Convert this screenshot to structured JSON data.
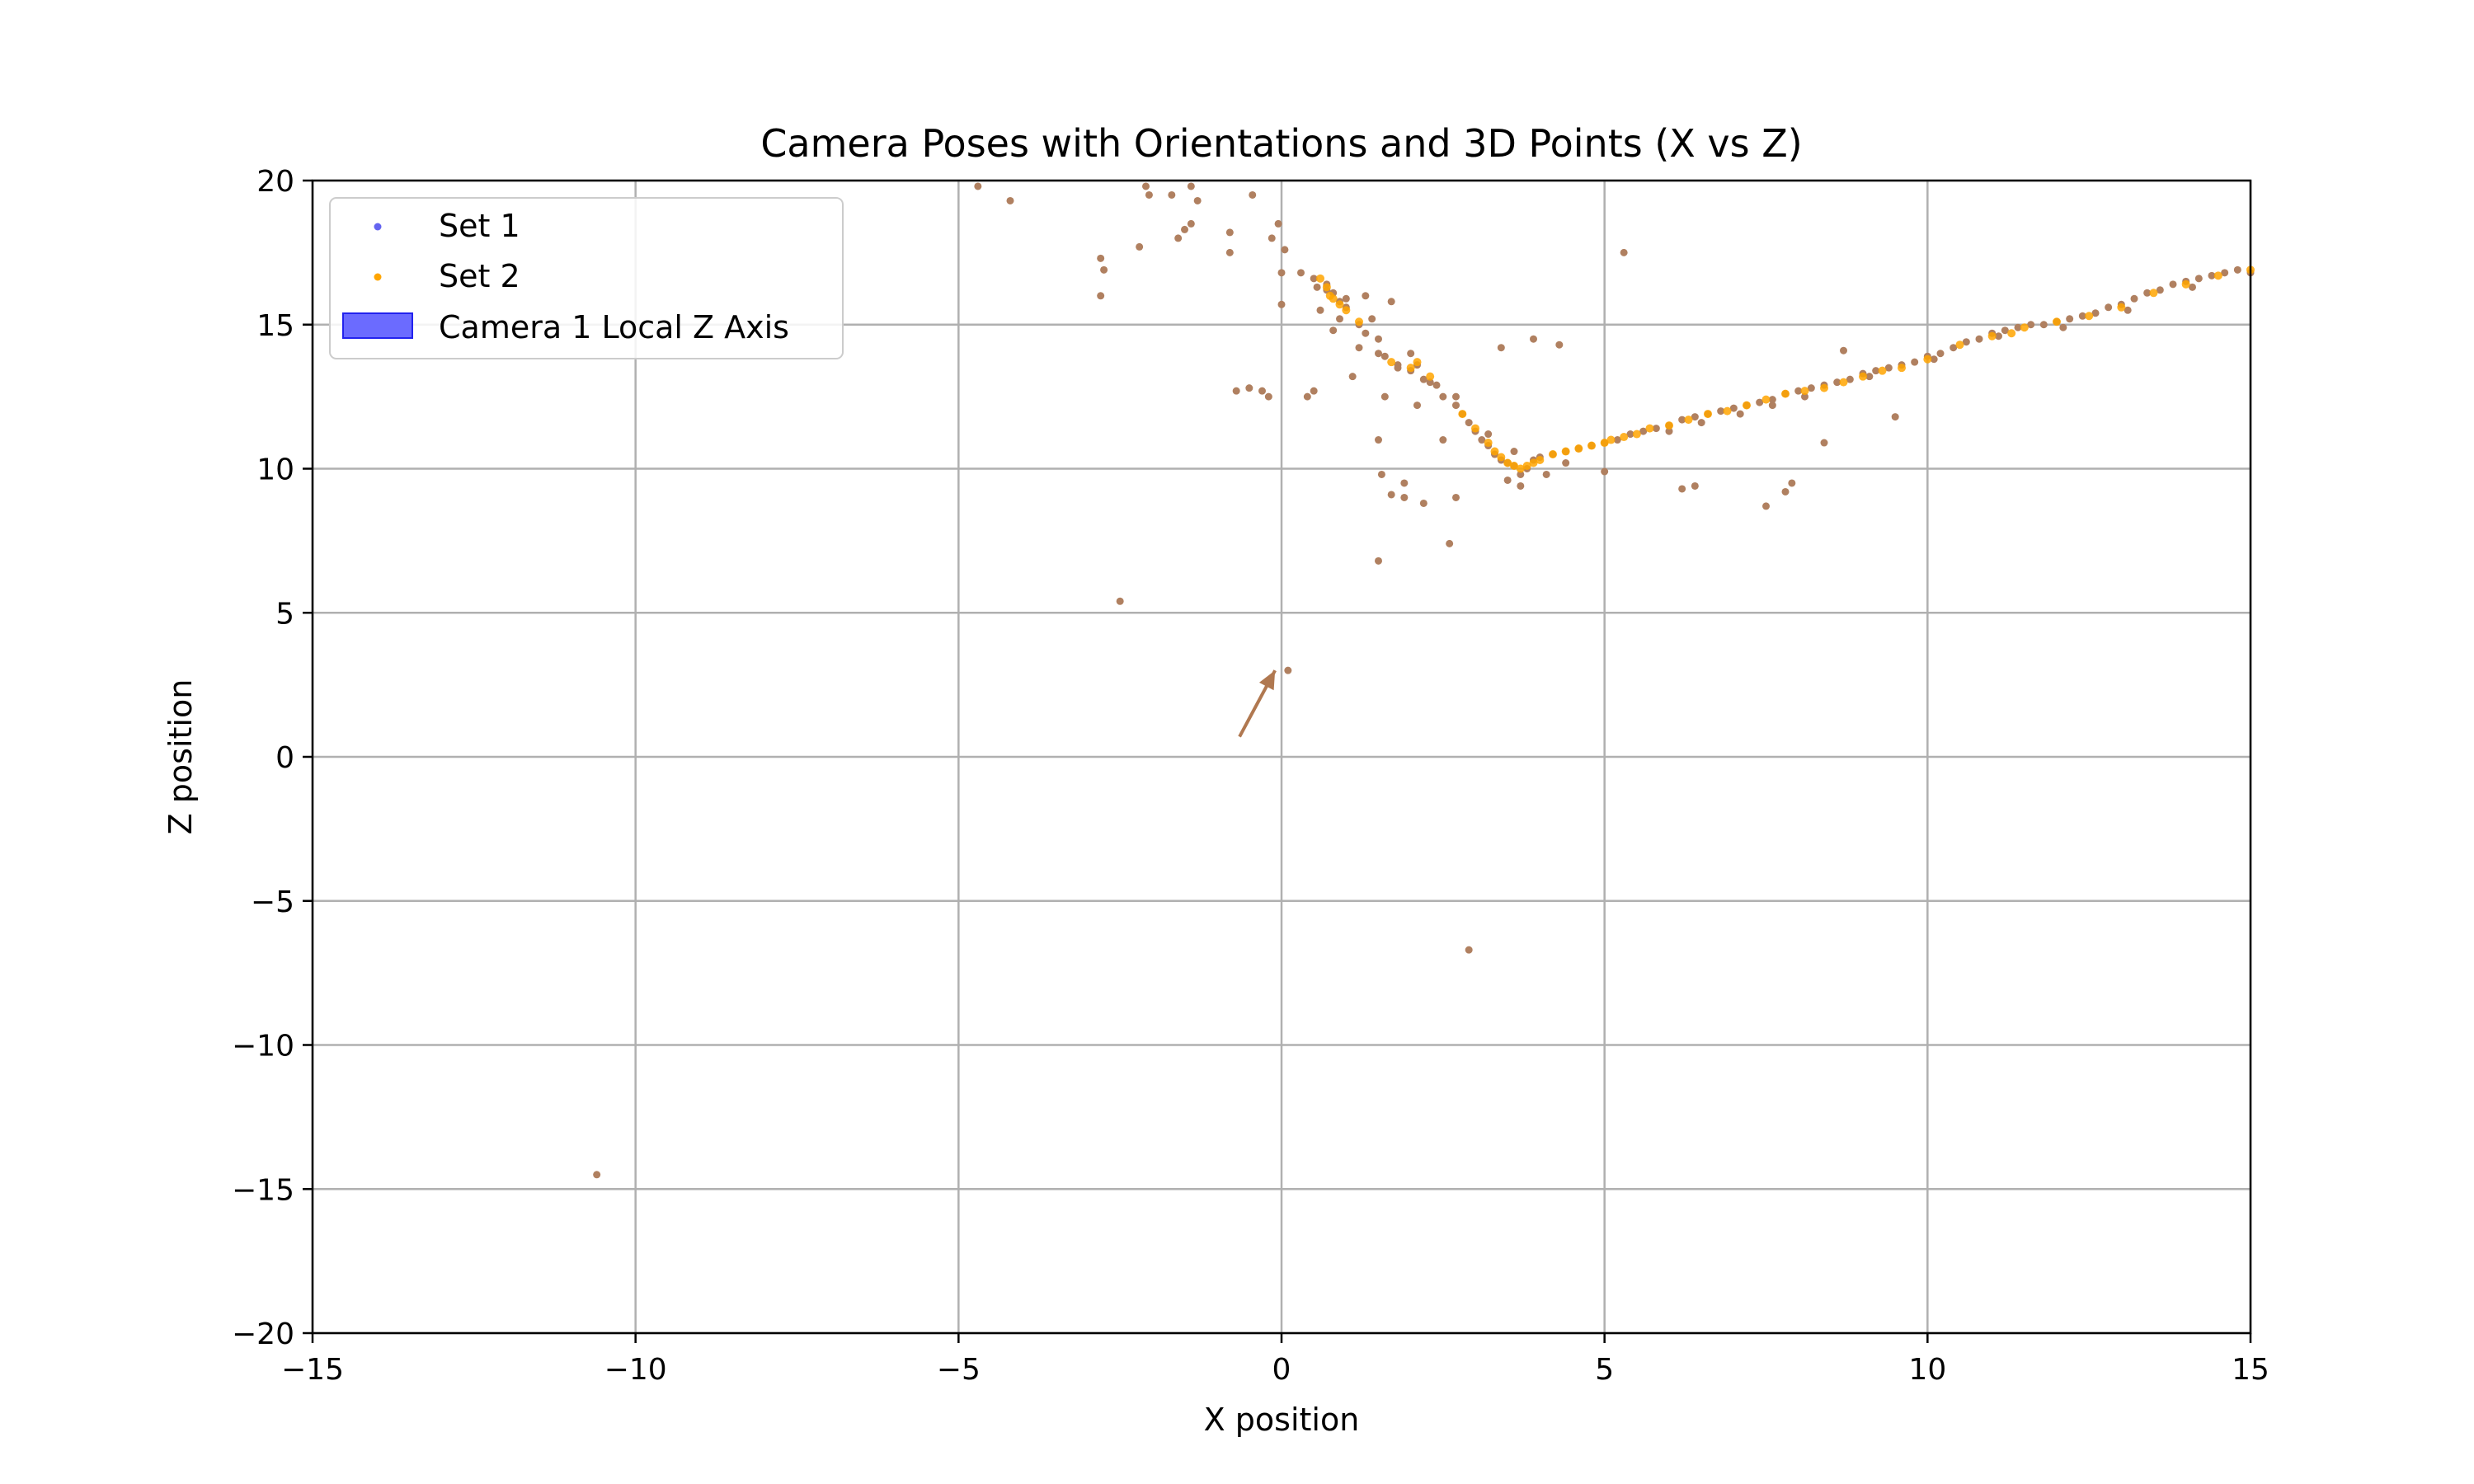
{
  "chart_data": {
    "type": "scatter",
    "title": "Camera Poses with Orientations and 3D Points (X vs Z)",
    "xlabel": "X position",
    "ylabel": "Z position",
    "xlim": [
      -15,
      15
    ],
    "ylim": [
      -20,
      20
    ],
    "grid": true,
    "legend_position": "upper-left",
    "x_ticks": [
      -15,
      -10,
      -5,
      0,
      5,
      10,
      15
    ],
    "y_ticks": [
      -20,
      -15,
      -10,
      -5,
      0,
      5,
      10,
      15,
      20
    ],
    "x_tick_labels": [
      "−15",
      "−10",
      "−5",
      "0",
      "5",
      "10",
      "15"
    ],
    "y_tick_labels": [
      "−20",
      "−15",
      "−10",
      "−5",
      "0",
      "5",
      "10",
      "15",
      "20"
    ],
    "colors": {
      "set1": "#6464f0",
      "set2": "#ffa500",
      "overlap": "#b08060",
      "arrow": "#b07850",
      "legend_patch": "#6b6bff",
      "grid": "#b0b0b0"
    },
    "legend": [
      {
        "label": "Set 1",
        "marker": "dot",
        "color": "#6464f0"
      },
      {
        "label": "Set 2",
        "marker": "dot",
        "color": "#ffa500"
      },
      {
        "label": "Camera 1 Local Z Axis",
        "marker": "patch",
        "color": "#6b6bff"
      }
    ],
    "arrow": {
      "x_start": -0.65,
      "y_start": 0.7,
      "x_end": -0.1,
      "y_end": 3.0
    },
    "series": [
      {
        "name": "Set 1",
        "points": [
          [
            -4.7,
            19.8
          ],
          [
            -4.2,
            19.3
          ],
          [
            -2.8,
            17.3
          ],
          [
            -2.75,
            16.9
          ],
          [
            -2.8,
            16.0
          ],
          [
            -2.5,
            5.4
          ],
          [
            -2.2,
            17.7
          ],
          [
            -2.1,
            19.8
          ],
          [
            -2.05,
            19.5
          ],
          [
            -1.7,
            19.5
          ],
          [
            -1.6,
            18.0
          ],
          [
            -1.5,
            18.3
          ],
          [
            -1.4,
            18.5
          ],
          [
            -1.4,
            19.8
          ],
          [
            -1.3,
            19.3
          ],
          [
            -0.8,
            18.2
          ],
          [
            -0.8,
            17.5
          ],
          [
            -0.7,
            12.7
          ],
          [
            -0.5,
            12.8
          ],
          [
            -0.45,
            19.5
          ],
          [
            -0.3,
            12.7
          ],
          [
            -0.2,
            12.5
          ],
          [
            -0.15,
            18.0
          ],
          [
            -0.05,
            18.5
          ],
          [
            0.0,
            16.8
          ],
          [
            0.0,
            15.7
          ],
          [
            0.05,
            17.6
          ],
          [
            0.1,
            3.0
          ],
          [
            0.3,
            16.8
          ],
          [
            0.4,
            12.5
          ],
          [
            0.5,
            12.7
          ],
          [
            0.55,
            16.3
          ],
          [
            0.6,
            15.5
          ],
          [
            0.7,
            16.2
          ],
          [
            0.8,
            14.8
          ],
          [
            0.9,
            15.2
          ],
          [
            1.0,
            15.9
          ],
          [
            1.1,
            13.2
          ],
          [
            1.2,
            14.2
          ],
          [
            1.3,
            16.0
          ],
          [
            1.4,
            15.2
          ],
          [
            1.5,
            14.0
          ],
          [
            1.5,
            11.0
          ],
          [
            1.55,
            9.8
          ],
          [
            1.6,
            12.5
          ],
          [
            1.7,
            9.1
          ],
          [
            1.7,
            15.8
          ],
          [
            1.8,
            13.5
          ],
          [
            1.9,
            9.5
          ],
          [
            1.9,
            9.0
          ],
          [
            2.0,
            14.0
          ],
          [
            2.1,
            12.2
          ],
          [
            2.2,
            8.8
          ],
          [
            2.3,
            13.0
          ],
          [
            2.5,
            11.0
          ],
          [
            2.6,
            7.4
          ],
          [
            2.7,
            12.5
          ],
          [
            2.7,
            9.0
          ],
          [
            2.9,
            -6.7
          ],
          [
            3.2,
            11.2
          ],
          [
            3.4,
            14.2
          ],
          [
            3.6,
            10.6
          ],
          [
            3.9,
            14.5
          ],
          [
            4.1,
            9.8
          ],
          [
            4.3,
            14.3
          ],
          [
            5.0,
            9.9
          ],
          [
            5.3,
            17.5
          ],
          [
            6.2,
            9.3
          ],
          [
            6.4,
            9.4
          ],
          [
            7.5,
            8.7
          ],
          [
            7.8,
            9.2
          ],
          [
            7.9,
            9.5
          ],
          [
            8.4,
            10.9
          ],
          [
            8.7,
            14.1
          ],
          [
            9.5,
            11.8
          ],
          [
            1.5,
            6.8
          ],
          [
            -10.6,
            -14.5
          ],
          [
            0.5,
            16.6
          ],
          [
            0.7,
            16.4
          ],
          [
            0.8,
            16.1
          ],
          [
            0.9,
            15.8
          ],
          [
            1.0,
            15.6
          ],
          [
            1.2,
            15.0
          ],
          [
            1.3,
            14.7
          ],
          [
            1.5,
            14.5
          ],
          [
            1.6,
            13.9
          ],
          [
            1.8,
            13.6
          ],
          [
            2.0,
            13.4
          ],
          [
            2.1,
            13.6
          ],
          [
            2.2,
            13.1
          ],
          [
            2.4,
            12.9
          ],
          [
            2.5,
            12.5
          ],
          [
            2.7,
            12.2
          ],
          [
            2.8,
            11.9
          ],
          [
            2.9,
            11.6
          ],
          [
            3.0,
            11.3
          ],
          [
            3.1,
            11.0
          ],
          [
            3.2,
            10.8
          ],
          [
            3.3,
            10.5
          ],
          [
            3.4,
            10.3
          ],
          [
            3.5,
            10.2
          ],
          [
            3.6,
            10.1
          ],
          [
            3.7,
            9.8
          ],
          [
            3.8,
            10.0
          ],
          [
            3.9,
            10.3
          ],
          [
            4.0,
            10.4
          ],
          [
            4.2,
            10.5
          ],
          [
            4.4,
            10.6
          ],
          [
            4.6,
            10.7
          ],
          [
            4.8,
            10.8
          ],
          [
            5.0,
            10.9
          ],
          [
            5.2,
            11.0
          ],
          [
            5.4,
            11.2
          ],
          [
            5.6,
            11.3
          ],
          [
            5.8,
            11.4
          ],
          [
            6.0,
            11.5
          ],
          [
            6.2,
            11.7
          ],
          [
            6.4,
            11.8
          ],
          [
            6.6,
            11.9
          ],
          [
            6.8,
            12.0
          ],
          [
            7.0,
            12.1
          ],
          [
            7.2,
            12.2
          ],
          [
            7.4,
            12.3
          ],
          [
            7.6,
            12.4
          ],
          [
            7.8,
            12.6
          ],
          [
            8.0,
            12.7
          ],
          [
            8.2,
            12.8
          ],
          [
            8.4,
            12.9
          ],
          [
            8.6,
            13.0
          ],
          [
            8.8,
            13.1
          ],
          [
            9.0,
            13.3
          ],
          [
            9.2,
            13.4
          ],
          [
            9.4,
            13.5
          ],
          [
            9.6,
            13.6
          ],
          [
            9.8,
            13.7
          ],
          [
            10.0,
            13.9
          ],
          [
            10.2,
            14.0
          ],
          [
            10.4,
            14.2
          ],
          [
            10.6,
            14.4
          ],
          [
            10.8,
            14.5
          ],
          [
            11.0,
            14.7
          ],
          [
            11.2,
            14.8
          ],
          [
            11.4,
            14.9
          ],
          [
            11.6,
            15.0
          ],
          [
            11.8,
            15.0
          ],
          [
            12.0,
            15.1
          ],
          [
            12.2,
            15.2
          ],
          [
            12.4,
            15.3
          ],
          [
            12.6,
            15.4
          ],
          [
            12.8,
            15.6
          ],
          [
            13.0,
            15.7
          ],
          [
            13.2,
            15.9
          ],
          [
            13.4,
            16.1
          ],
          [
            13.6,
            16.2
          ],
          [
            13.8,
            16.4
          ],
          [
            14.0,
            16.5
          ],
          [
            14.2,
            16.6
          ],
          [
            14.4,
            16.7
          ],
          [
            14.6,
            16.8
          ],
          [
            14.8,
            16.9
          ],
          [
            15.0,
            16.8
          ],
          [
            6.0,
            11.3
          ],
          [
            6.5,
            11.6
          ],
          [
            7.1,
            11.9
          ],
          [
            7.6,
            12.2
          ],
          [
            8.1,
            12.5
          ],
          [
            9.1,
            13.2
          ],
          [
            10.1,
            13.8
          ],
          [
            11.1,
            14.6
          ],
          [
            12.1,
            14.9
          ],
          [
            13.1,
            15.5
          ],
          [
            14.1,
            16.3
          ],
          [
            3.5,
            9.6
          ],
          [
            3.7,
            9.4
          ],
          [
            4.4,
            10.2
          ]
        ]
      },
      {
        "name": "Set 2",
        "points": [
          [
            0.6,
            16.6
          ],
          [
            0.7,
            16.3
          ],
          [
            0.75,
            16.0
          ],
          [
            0.8,
            15.9
          ],
          [
            0.9,
            15.7
          ],
          [
            1.0,
            15.5
          ],
          [
            1.2,
            15.1
          ],
          [
            1.7,
            13.7
          ],
          [
            2.0,
            13.5
          ],
          [
            2.1,
            13.7
          ],
          [
            2.3,
            13.2
          ],
          [
            2.8,
            11.9
          ],
          [
            3.0,
            11.4
          ],
          [
            3.2,
            10.9
          ],
          [
            3.3,
            10.6
          ],
          [
            3.4,
            10.4
          ],
          [
            3.5,
            10.2
          ],
          [
            3.6,
            10.1
          ],
          [
            3.7,
            10.0
          ],
          [
            3.8,
            10.1
          ],
          [
            3.9,
            10.2
          ],
          [
            4.0,
            10.3
          ],
          [
            4.2,
            10.5
          ],
          [
            4.4,
            10.6
          ],
          [
            4.6,
            10.7
          ],
          [
            4.8,
            10.8
          ],
          [
            5.0,
            10.9
          ],
          [
            5.1,
            11.0
          ],
          [
            5.3,
            11.1
          ],
          [
            5.5,
            11.2
          ],
          [
            5.7,
            11.4
          ],
          [
            6.0,
            11.5
          ],
          [
            6.3,
            11.7
          ],
          [
            6.6,
            11.9
          ],
          [
            6.9,
            12.0
          ],
          [
            7.2,
            12.2
          ],
          [
            7.5,
            12.4
          ],
          [
            7.8,
            12.6
          ],
          [
            8.1,
            12.7
          ],
          [
            8.4,
            12.8
          ],
          [
            8.7,
            13.0
          ],
          [
            9.0,
            13.2
          ],
          [
            9.3,
            13.4
          ],
          [
            9.6,
            13.5
          ],
          [
            10.0,
            13.8
          ],
          [
            10.5,
            14.3
          ],
          [
            11.0,
            14.6
          ],
          [
            11.3,
            14.7
          ],
          [
            11.5,
            14.9
          ],
          [
            12.0,
            15.1
          ],
          [
            12.5,
            15.3
          ],
          [
            13.0,
            15.6
          ],
          [
            13.5,
            16.1
          ],
          [
            14.0,
            16.4
          ],
          [
            14.5,
            16.7
          ],
          [
            15.0,
            16.9
          ]
        ]
      }
    ]
  }
}
